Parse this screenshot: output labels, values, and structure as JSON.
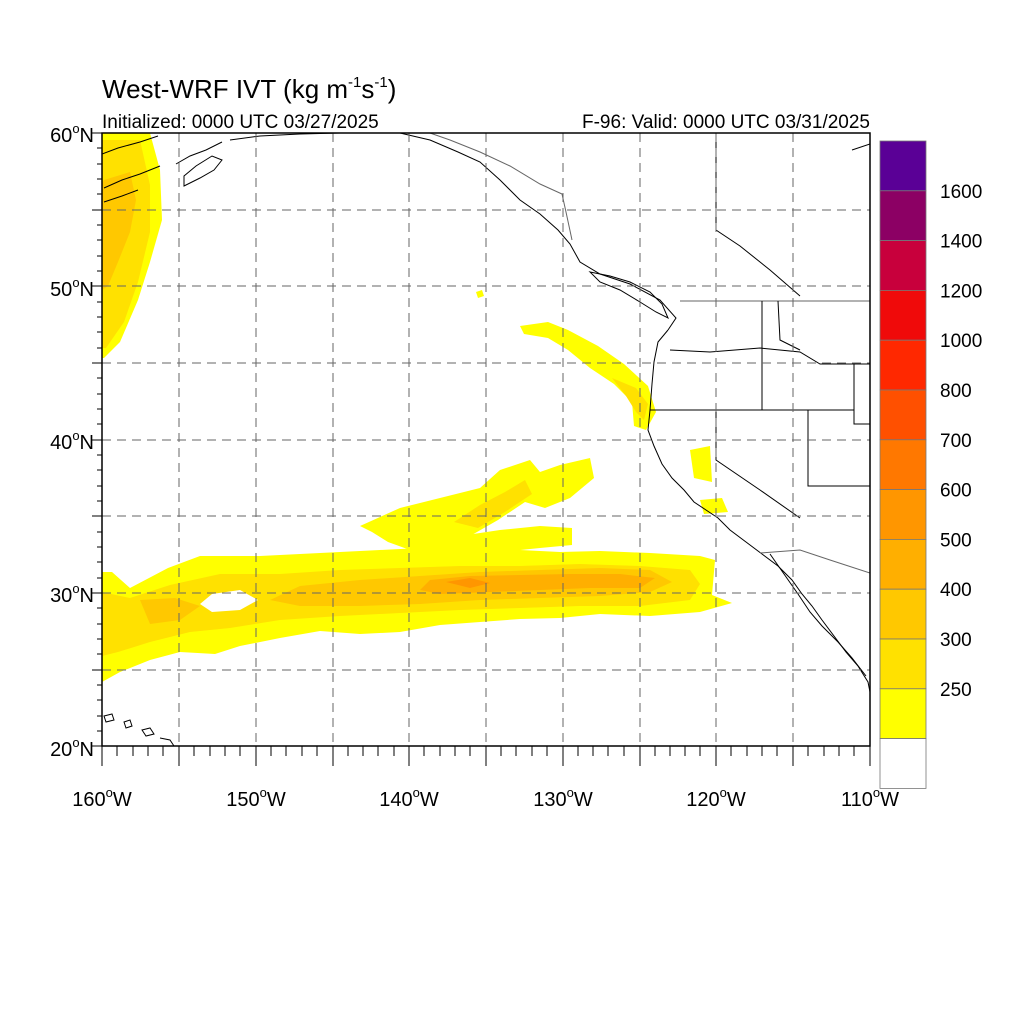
{
  "title": {
    "main": "West-WRF IVT (kg m",
    "sup1": "-1",
    "mid": "s",
    "sup2": "-1",
    "close": ")"
  },
  "initialized": "Initialized: 0000 UTC 03/27/2025",
  "valid": "F-96: Valid: 0000 UTC 03/31/2025",
  "axes": {
    "lat_labels": [
      {
        "deg": "20",
        "hemi": "N"
      },
      {
        "deg": "30",
        "hemi": "N"
      },
      {
        "deg": "40",
        "hemi": "N"
      },
      {
        "deg": "50",
        "hemi": "N"
      },
      {
        "deg": "60",
        "hemi": "N"
      }
    ],
    "lon_labels": [
      {
        "deg": "160",
        "hemi": "W"
      },
      {
        "deg": "150",
        "hemi": "W"
      },
      {
        "deg": "140",
        "hemi": "W"
      },
      {
        "deg": "130",
        "hemi": "W"
      },
      {
        "deg": "120",
        "hemi": "W"
      },
      {
        "deg": "110",
        "hemi": "W"
      }
    ],
    "lat_range": [
      20,
      60
    ],
    "lon_range": [
      -160,
      -110
    ],
    "gridlines": "dashed, every 5 degrees"
  },
  "colorbar": {
    "levels": [
      "250",
      "300",
      "400",
      "500",
      "600",
      "700",
      "800",
      "1000",
      "1200",
      "1400",
      "1600"
    ],
    "colors": [
      "#ffffff",
      "#ffff00",
      "#ffe100",
      "#ffc800",
      "#ffaf00",
      "#ff9600",
      "#ff7800",
      "#ff5000",
      "#ff2800",
      "#f00a0a",
      "#c8003c",
      "#8c0064",
      "#5a0096"
    ],
    "placement": "right"
  },
  "colors": {
    "ivt_250_300": "#ffff00",
    "ivt_300_400": "#ffe100",
    "ivt_400_500": "#ffc800",
    "ivt_500_600": "#ffaf00",
    "ivt_600_700": "#ff9600"
  }
}
